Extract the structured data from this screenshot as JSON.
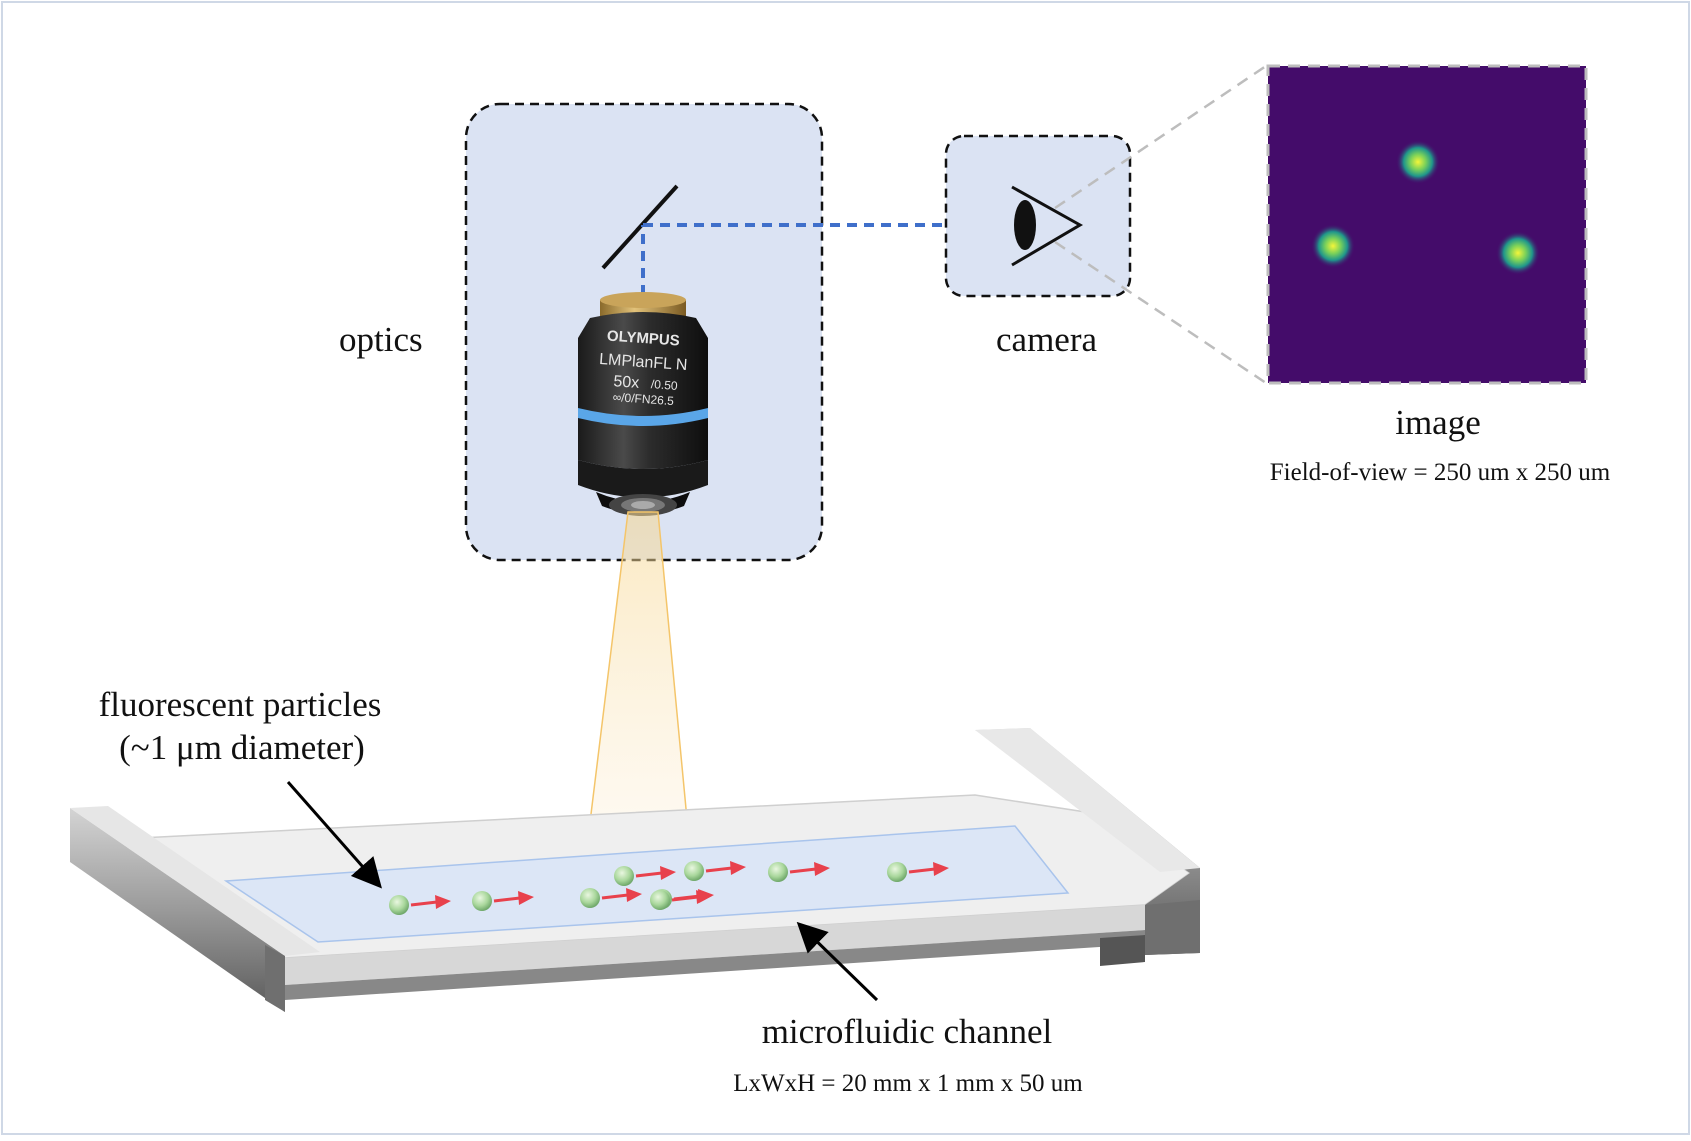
{
  "labels": {
    "optics": "optics",
    "camera": "camera",
    "image": "image",
    "fov": "Field-of-view = 250 um x 250 um",
    "particles_line1": "fluorescent particles",
    "particles_line2": "(~1 μm diameter)",
    "channel": "microfluidic channel",
    "channel_dims": "LxWxH = 20 mm x 1 mm x 50 um"
  },
  "objective": {
    "brand": "OLYMPUS",
    "model": "LMPlanFL N",
    "magnification": "50x",
    "na": "/0.50",
    "spec": "∞/0/FN26.5"
  },
  "colors": {
    "panel_fill": "#dbe3f3",
    "light_path": "#3f6fca",
    "velocity_arrow": "#e8414c",
    "particle": "#a9d79c",
    "image_bg": "#440c6a",
    "spot": "#e6ee3a",
    "channel_fluid": "#dce6f6",
    "light_cone": "#f4c56a"
  },
  "image_panel": {
    "spots": 3
  },
  "particles": {
    "count": 9
  }
}
